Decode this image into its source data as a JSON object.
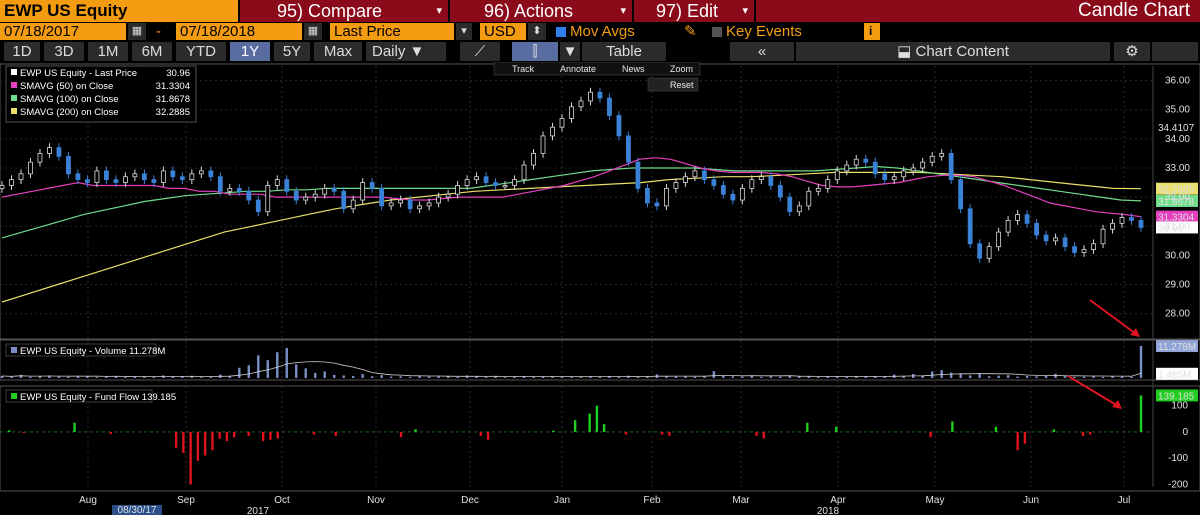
{
  "top_bar": {
    "ticker": "EWP US Equity",
    "compare": {
      "num": "95)",
      "label": "Compare"
    },
    "actions": {
      "num": "96)",
      "label": "Actions"
    },
    "edit": {
      "num": "97)",
      "label": "Edit"
    },
    "caret": "▾",
    "chart_title": "Candle Chart"
  },
  "second_bar": {
    "start_date": "07/18/2017",
    "dash": "-",
    "end_date": "07/18/2018",
    "field": "Last Price",
    "currency": "USD",
    "mov_avgs": "Mov Avgs",
    "key_events": "Key Events",
    "info": "i"
  },
  "third_bar": {
    "periods": [
      "1D",
      "3D",
      "1M",
      "6M",
      "YTD",
      "1Y",
      "5Y",
      "Max"
    ],
    "active_period": "1Y",
    "frequency": "Daily",
    "table": "Table",
    "collapse": "«",
    "chart_content": "Chart Content"
  },
  "toolbar": {
    "track": "Track",
    "annotate": "Annotate",
    "news": "News",
    "zoom": "Zoom",
    "reset": "Reset"
  },
  "colors": {
    "up_candle": "#d9d9d9",
    "down_candle": "#3b82d6",
    "sma50": "#e43fbf",
    "sma100": "#6fdc8c",
    "sma200": "#e8e06a",
    "volume": "#7a8fc4",
    "flow_pos": "#1fce1f",
    "flow_neg": "#e0141e",
    "accent": "#f39c12"
  },
  "chart_data": [
    {
      "type": "line",
      "title": "EWP US Equity",
      "legend": [
        {
          "label": "EWP US Equity - Last Price",
          "value": "30.96"
        },
        {
          "label": "SMAVG (50) on Close",
          "value": "31.3304"
        },
        {
          "label": "SMAVG (100) on Close",
          "value": "31.8678"
        },
        {
          "label": "SMAVG (200) on Close",
          "value": "32.2885"
        }
      ],
      "ylim": [
        27.2,
        36.5
      ],
      "y_ticks": [
        28.0,
        29.0,
        30.0,
        31.0,
        32.0,
        33.0,
        34.0,
        35.0,
        36.0
      ],
      "y_tick_labels": [
        "28.00",
        "29.00",
        "30.00",
        "31.00",
        "32.00",
        "33.00",
        "34.00",
        "35.00",
        "36.00"
      ],
      "value_tags": [
        {
          "label": "34.4107",
          "value": 34.4107,
          "color": "#ffffff",
          "bg": "#000000"
        },
        {
          "label": "32.2885",
          "value": 32.2885,
          "color": "#000000",
          "bg": "#e8e06a"
        },
        {
          "label": "31.8678",
          "value": 31.8678,
          "color": "#000000",
          "bg": "#6fdc8c"
        },
        {
          "label": "31.3304",
          "value": 31.3304,
          "color": "#ffffff",
          "bg": "#e43fbf"
        },
        {
          "label": "30.96",
          "value": 30.96,
          "color": "#000000",
          "bg": "#ffffff"
        }
      ],
      "price_close": [
        32.4,
        32.6,
        32.8,
        33.2,
        33.5,
        33.7,
        33.4,
        32.8,
        32.6,
        32.5,
        32.9,
        32.6,
        32.5,
        32.7,
        32.8,
        32.6,
        32.5,
        32.9,
        32.7,
        32.6,
        32.8,
        32.9,
        32.7,
        32.2,
        32.3,
        32.2,
        31.9,
        31.5,
        32.4,
        32.6,
        32.2,
        31.9,
        32.0,
        32.1,
        32.3,
        32.2,
        31.6,
        31.9,
        32.5,
        32.3,
        31.7,
        31.8,
        31.9,
        31.6,
        31.7,
        31.8,
        32.0,
        32.1,
        32.4,
        32.6,
        32.7,
        32.5,
        32.4,
        32.4,
        32.6,
        33.1,
        33.5,
        34.1,
        34.4,
        34.7,
        35.1,
        35.3,
        35.6,
        35.4,
        34.8,
        34.1,
        33.2,
        32.3,
        31.8,
        31.7,
        32.3,
        32.5,
        32.7,
        32.9,
        32.6,
        32.4,
        32.1,
        31.9,
        32.3,
        32.6,
        32.7,
        32.4,
        32.0,
        31.5,
        31.7,
        32.2,
        32.3,
        32.6,
        32.9,
        33.1,
        33.3,
        33.2,
        32.8,
        32.6,
        32.7,
        32.9,
        33.0,
        33.2,
        33.4,
        33.5,
        32.6,
        31.6,
        30.4,
        29.9,
        30.3,
        30.8,
        31.2,
        31.4,
        31.1,
        30.7,
        30.5,
        30.6,
        30.3,
        30.1,
        30.2,
        30.4,
        30.9,
        31.1,
        31.3,
        31.2,
        30.96
      ],
      "sma50": [
        32.0,
        32.1,
        32.2,
        32.3,
        32.4,
        32.5,
        32.4,
        32.4,
        32.4,
        32.4,
        32.4,
        32.3,
        32.3,
        32.2,
        32.2,
        32.1,
        32.1,
        32.1,
        32.0,
        32.0,
        32.0,
        32.0,
        32.0,
        32.0,
        32.0,
        32.0,
        31.95,
        31.9,
        31.9,
        31.95,
        32.0,
        32.0,
        32.0,
        32.0,
        32.1,
        32.2,
        32.3,
        32.4,
        32.55,
        32.7,
        32.9,
        33.1,
        33.3,
        33.35,
        33.3,
        33.15,
        33.0,
        32.9,
        32.85,
        32.85,
        32.85,
        32.8,
        32.7,
        32.55,
        32.4,
        32.35,
        32.35,
        32.4,
        32.45,
        32.5,
        32.6,
        32.7,
        32.75,
        32.75,
        32.7,
        32.55,
        32.4,
        32.2,
        32.0,
        31.8,
        31.7,
        31.6,
        31.5,
        31.45,
        31.4,
        31.33
      ],
      "sma100": [
        30.6,
        30.8,
        31.0,
        31.2,
        31.4,
        31.55,
        31.7,
        31.85,
        31.95,
        32.05,
        32.1,
        32.15,
        32.2,
        32.2,
        32.25,
        32.25,
        32.3,
        32.3,
        32.3,
        32.3,
        32.3,
        32.3,
        32.3,
        32.3,
        32.4,
        32.5,
        32.6,
        32.7,
        32.8,
        32.9,
        32.95,
        33.0,
        33.0,
        33.0,
        33.0,
        32.95,
        32.9,
        32.9,
        32.9,
        32.9,
        32.9,
        32.95,
        33.0,
        33.05,
        33.0,
        32.9,
        32.8,
        32.7,
        32.6,
        32.5,
        32.4,
        32.3,
        32.2,
        32.1,
        32.0,
        31.9,
        31.87
      ],
      "sma200": [
        28.4,
        28.7,
        29.0,
        29.3,
        29.6,
        29.9,
        30.2,
        30.5,
        30.8,
        31.0,
        31.2,
        31.4,
        31.6,
        31.75,
        31.9,
        32.0,
        32.1,
        32.2,
        32.25,
        32.3,
        32.35,
        32.4,
        32.45,
        32.5,
        32.6,
        32.65,
        32.7,
        32.7,
        32.75,
        32.8,
        32.85,
        32.85,
        32.85,
        32.85,
        32.8,
        32.75,
        32.7,
        32.6,
        32.5,
        32.4,
        32.3,
        32.29
      ]
    },
    {
      "type": "bar",
      "title": "EWP US Equity - Volume",
      "legend": [
        {
          "label": "EWP US Equity - Volume",
          "value": "11.278M"
        }
      ],
      "value_tags": [
        {
          "label": "11.278M",
          "value": 11.278,
          "color": "#000000",
          "bg": "#8fa3d6"
        },
        {
          "label": "1.485M",
          "value": 1.485,
          "color": "#000000",
          "bg": "#ffffff"
        }
      ],
      "ylim": [
        0,
        12
      ],
      "values": [
        0.7,
        0.5,
        1.1,
        0.4,
        0.6,
        0.9,
        0.5,
        0.4,
        0.8,
        0.6,
        0.3,
        0.5,
        0.7,
        0.4,
        0.6,
        0.5,
        0.4,
        0.9,
        0.6,
        0.5,
        0.7,
        0.3,
        0.4,
        1.2,
        0.8,
        3.6,
        4.5,
        8.0,
        6.3,
        9.1,
        10.6,
        4.8,
        3.4,
        1.8,
        2.3,
        1.1,
        0.9,
        0.7,
        1.4,
        0.6,
        1.0,
        0.5,
        0.6,
        0.4,
        0.8,
        0.5,
        0.6,
        0.7,
        0.4,
        0.9,
        0.5,
        0.4,
        0.6,
        0.3,
        0.5,
        0.7,
        0.4,
        0.5,
        0.6,
        0.4,
        0.5,
        0.3,
        0.6,
        0.4,
        0.7,
        0.5,
        0.8,
        0.4,
        0.6,
        1.3,
        0.5,
        0.7,
        0.6,
        0.4,
        0.5,
        2.4,
        0.8,
        0.6,
        0.5,
        0.7,
        0.4,
        0.6,
        0.5,
        0.8,
        0.7,
        0.5,
        0.4,
        0.6,
        0.5,
        0.4,
        0.6,
        0.5,
        0.7,
        0.6,
        1.2,
        0.8,
        1.4,
        0.7,
        2.3,
        2.8,
        1.9,
        1.5,
        0.9,
        1.7,
        0.6,
        0.8,
        1.0,
        0.5,
        0.7,
        0.6,
        0.8,
        1.5,
        0.6,
        0.4,
        0.5,
        0.7,
        0.4,
        0.6,
        0.5,
        0.4,
        11.3
      ]
    },
    {
      "type": "bar",
      "title": "EWP US Equity - Fund Flow",
      "legend": [
        {
          "label": "EWP US Equity - Fund Flow",
          "value": "139.185"
        }
      ],
      "value_tags": [
        {
          "label": "139.185",
          "value": 139.185,
          "color": "#000000",
          "bg": "#1fce1f"
        }
      ],
      "ylim": [
        -210,
        160
      ],
      "y_ticks": [
        100,
        0,
        -100,
        -200
      ],
      "y_tick_labels": [
        "100",
        "0",
        "-100",
        "-200"
      ],
      "values": [
        0,
        6,
        0,
        -4,
        0,
        0,
        0,
        0,
        0,
        0,
        35,
        0,
        0,
        0,
        0,
        -8,
        0,
        0,
        0,
        0,
        0,
        0,
        0,
        0,
        -60,
        -80,
        -200,
        -110,
        -90,
        -70,
        -25,
        -35,
        -20,
        0,
        -15,
        0,
        -35,
        -30,
        -25,
        0,
        0,
        0,
        0,
        -10,
        0,
        0,
        -15,
        0,
        0,
        0,
        0,
        0,
        0,
        0,
        0,
        -20,
        0,
        10,
        0,
        0,
        0,
        0,
        0,
        0,
        0,
        0,
        -15,
        -30,
        0,
        0,
        0,
        0,
        0,
        0,
        0,
        0,
        5,
        0,
        0,
        45,
        0,
        70,
        100,
        30,
        0,
        0,
        -10,
        0,
        0,
        0,
        0,
        -10,
        -15,
        0,
        0,
        0,
        0,
        0,
        0,
        0,
        0,
        0,
        0,
        0,
        -15,
        -25,
        0,
        0,
        0,
        0,
        0,
        35,
        0,
        0,
        0,
        20,
        0,
        0,
        0,
        0,
        0,
        0,
        0,
        0,
        0,
        0,
        0,
        0,
        -20,
        0,
        0,
        40,
        0,
        0,
        0,
        0,
        0,
        20,
        0,
        0,
        -70,
        -45,
        0,
        0,
        0,
        10,
        0,
        0,
        0,
        -15,
        -10,
        0,
        0,
        0,
        0,
        0,
        0,
        139
      ]
    }
  ],
  "x_axis": {
    "months": [
      "Aug",
      "Sep",
      "Oct",
      "Nov",
      "Dec",
      "Jan",
      "Feb",
      "Mar",
      "Apr",
      "May",
      "Jun",
      "Jul"
    ],
    "years": [
      "2017",
      "2018"
    ],
    "cursor_date": "08/30/17"
  }
}
